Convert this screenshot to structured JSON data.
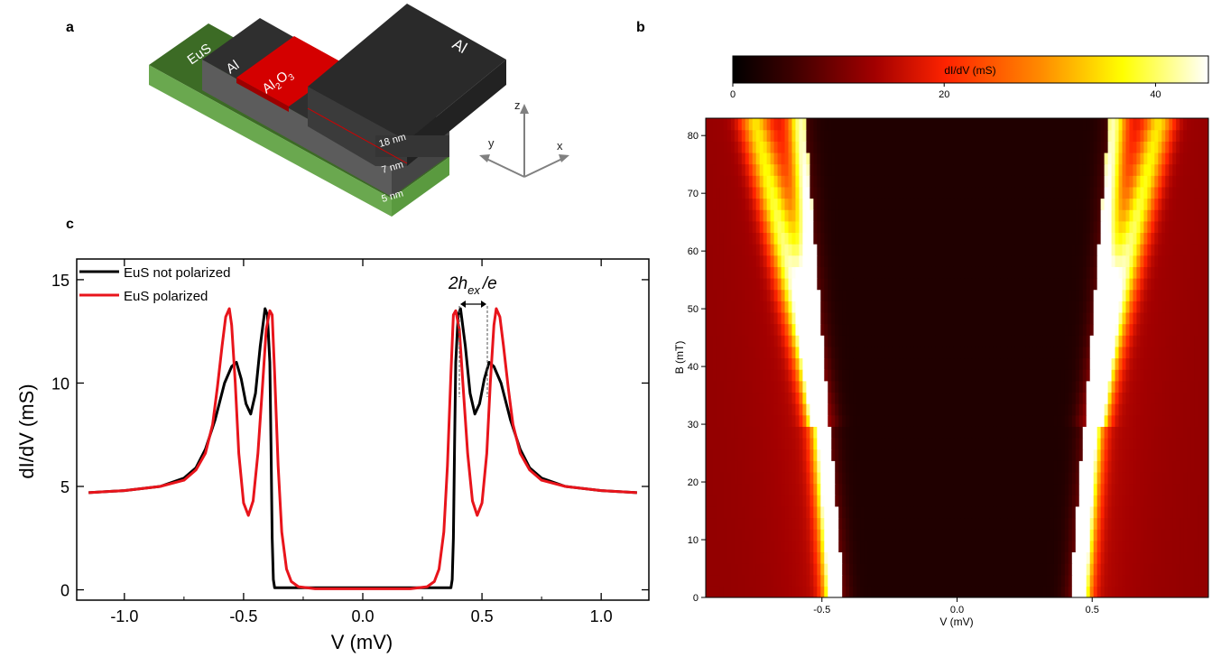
{
  "panel_labels": {
    "a": "a",
    "b": "b",
    "c": "c"
  },
  "schematic": {
    "layers": {
      "eus": "EuS",
      "al_bottom": "Al",
      "al2o3_main": "Al",
      "al2o3_sub1": "2",
      "al2o3_o": "O",
      "al2o3_sub2": "3",
      "al_top": "Al"
    },
    "thickness": {
      "top": "18 nm",
      "middle": "7 nm",
      "bottom": "5 nm"
    },
    "axes": {
      "x": "x",
      "y": "y",
      "z": "z"
    },
    "colors": {
      "eus": "#3f6e2a",
      "al": "#3b3b3b",
      "al2o3": "#d40000"
    }
  },
  "chart_data": [
    {
      "type": "line",
      "panel": "c",
      "xlabel": "V (mV)",
      "ylabel": "dI/dV (mS)",
      "xlim": [
        -1.2,
        1.2
      ],
      "ylim": [
        -0.5,
        16
      ],
      "xticks": [
        -1.0,
        -0.5,
        0.0,
        0.5,
        1.0
      ],
      "xtick_labels": [
        "-1.0",
        "-0.5",
        "0.0",
        "0.5",
        "1.0"
      ],
      "yticks": [
        0,
        5,
        10,
        15
      ],
      "ytick_labels": [
        "0",
        "5",
        "10",
        "15"
      ],
      "legend_position": "top-left",
      "annotation": {
        "main": "2h",
        "sub": "ex",
        "tail": "/e"
      },
      "series": [
        {
          "name": "EuS not polarized",
          "color": "#000000",
          "x": [
            -1.15,
            -1.0,
            -0.85,
            -0.75,
            -0.7,
            -0.66,
            -0.62,
            -0.58,
            -0.55,
            -0.53,
            -0.51,
            -0.49,
            -0.47,
            -0.45,
            -0.43,
            -0.41,
            -0.4,
            -0.39,
            -0.385,
            -0.38,
            -0.375,
            -0.37,
            -0.36,
            0.36,
            0.37,
            0.375,
            0.38,
            0.385,
            0.39,
            0.4,
            0.41,
            0.43,
            0.45,
            0.47,
            0.49,
            0.51,
            0.53,
            0.55,
            0.58,
            0.62,
            0.66,
            0.7,
            0.75,
            0.85,
            1.0,
            1.15
          ],
          "y": [
            4.7,
            4.8,
            5.0,
            5.4,
            5.9,
            6.8,
            8.2,
            10.0,
            10.8,
            11.0,
            10.2,
            9.0,
            8.5,
            9.5,
            11.8,
            13.6,
            13.3,
            11.0,
            7.0,
            2.5,
            0.5,
            0.1,
            0.1,
            0.1,
            0.1,
            0.5,
            2.5,
            7.0,
            11.0,
            13.3,
            13.6,
            11.8,
            9.5,
            8.5,
            9.0,
            10.2,
            11.0,
            10.8,
            10.0,
            8.2,
            6.8,
            5.9,
            5.4,
            5.0,
            4.8,
            4.7
          ]
        },
        {
          "name": "EuS polarized",
          "color": "#e8141b",
          "x": [
            -1.15,
            -1.0,
            -0.85,
            -0.75,
            -0.7,
            -0.66,
            -0.63,
            -0.61,
            -0.59,
            -0.575,
            -0.56,
            -0.55,
            -0.535,
            -0.52,
            -0.5,
            -0.48,
            -0.46,
            -0.44,
            -0.42,
            -0.405,
            -0.39,
            -0.38,
            -0.37,
            -0.355,
            -0.34,
            -0.32,
            -0.3,
            -0.27,
            -0.2,
            0.0,
            0.2,
            0.27,
            0.3,
            0.32,
            0.34,
            0.355,
            0.37,
            0.38,
            0.39,
            0.405,
            0.42,
            0.44,
            0.46,
            0.48,
            0.5,
            0.52,
            0.535,
            0.55,
            0.56,
            0.575,
            0.59,
            0.61,
            0.63,
            0.66,
            0.7,
            0.75,
            0.85,
            1.0,
            1.15
          ],
          "y": [
            4.7,
            4.8,
            5.0,
            5.3,
            5.8,
            6.6,
            8.0,
            9.8,
            11.8,
            13.2,
            13.6,
            12.8,
            10.0,
            6.6,
            4.2,
            3.6,
            4.3,
            6.6,
            10.0,
            12.6,
            13.5,
            13.3,
            10.5,
            6.0,
            2.8,
            1.0,
            0.4,
            0.15,
            0.05,
            0.05,
            0.05,
            0.15,
            0.4,
            1.0,
            2.8,
            6.0,
            10.5,
            13.3,
            13.5,
            12.6,
            10.0,
            6.6,
            4.3,
            3.6,
            4.2,
            6.6,
            10.0,
            12.8,
            13.6,
            13.2,
            11.8,
            9.8,
            8.0,
            6.6,
            5.8,
            5.3,
            5.0,
            4.8,
            4.7
          ]
        }
      ]
    },
    {
      "type": "heatmap",
      "panel": "b",
      "xlabel": "V (mV)",
      "ylabel": "B (mT)",
      "xlim": [
        -0.93,
        0.93
      ],
      "ylim": [
        0,
        83
      ],
      "xticks": [
        -0.5,
        0.0,
        0.5
      ],
      "xtick_labels": [
        "-0.5",
        "0.0",
        "0.5"
      ],
      "yticks": [
        0,
        10,
        20,
        30,
        40,
        50,
        60,
        70,
        80
      ],
      "ytick_labels": [
        "0",
        "10",
        "20",
        "30",
        "40",
        "50",
        "60",
        "70",
        "80"
      ],
      "colorbar": {
        "label": "dI/dV (mS)",
        "range": [
          0,
          45
        ],
        "ticks": [
          0,
          20,
          40
        ],
        "tick_labels": [
          "0",
          "20",
          "40"
        ],
        "colors": [
          "#000000",
          "#3a0000",
          "#a30000",
          "#ff2400",
          "#ff8c00",
          "#ffff00",
          "#ffffff"
        ]
      },
      "features": {
        "gap_center_mV": 0.0,
        "inner_peak_at_0mT_mV": 0.44,
        "inner_peak_at_80mT_mV": 0.58,
        "outer_peak_at_80mT_mV": 0.75,
        "peak_split_onset_mT": 30,
        "background_mS": 12,
        "gap_mS": 3,
        "peak_max_mS": 45
      }
    }
  ]
}
